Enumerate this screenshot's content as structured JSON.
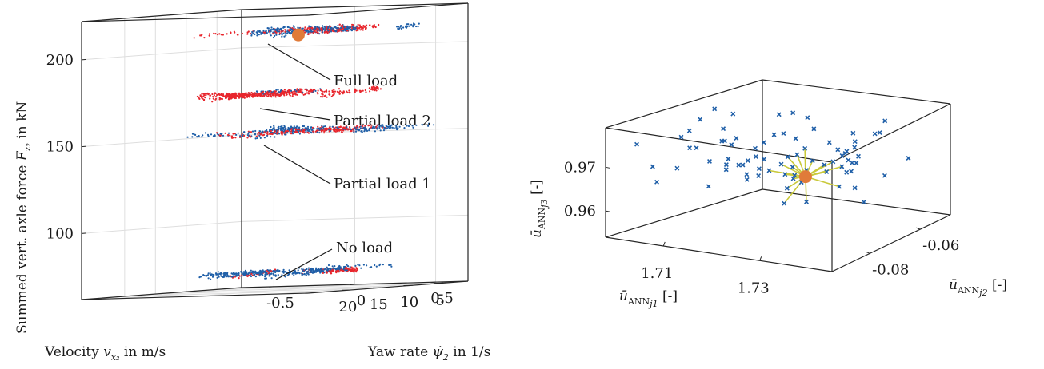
{
  "chart_data": [
    {
      "type": "scatter3d",
      "xlabel": "Velocity v_x2 in m/s",
      "ylabel": "Yaw rate ψ̇2 in 1/s",
      "zlabel": "Summed vert. axle force F_z2 in kN",
      "xlabel_parts": {
        "pre": "Velocity ",
        "var": "v",
        "sub": "x₂",
        "post": " in m/s"
      },
      "ylabel_parts": {
        "pre": "Yaw rate ",
        "var": "ψ̇",
        "sub": "2",
        "post": " in 1/s"
      },
      "zlabel_parts": {
        "pre": "Summed vert. axle force ",
        "var": "F",
        "sub": "z₂",
        "post": " in kN"
      },
      "x_ticks": [
        "5",
        "10",
        "15",
        "20"
      ],
      "y_ticks": [
        "-0.5",
        "0",
        "0.5"
      ],
      "z_ticks": [
        "100",
        "150",
        "200"
      ],
      "xlim": [
        1,
        27
      ],
      "ylim": [
        -0.7,
        0.7
      ],
      "zlim": [
        62,
        222
      ],
      "grid": true,
      "colors": {
        "training": "#1f5fa8",
        "neighbors": "#e8262d",
        "query": "#e07b39"
      },
      "clusters": [
        {
          "name": "Full load",
          "z": 211,
          "x_range": [
            1,
            25
          ],
          "y_range": [
            -0.3,
            0.5
          ]
        },
        {
          "name": "Partial load 2",
          "z": 175,
          "x_range": [
            4,
            20
          ],
          "y_range": [
            -0.25,
            0.35
          ]
        },
        {
          "name": "Partial load 1",
          "z": 153,
          "x_range": [
            1,
            25
          ],
          "y_range": [
            -0.35,
            0.5
          ]
        },
        {
          "name": "No load",
          "z": 72,
          "x_range": [
            1,
            25
          ],
          "y_range": [
            -0.4,
            0.45
          ]
        }
      ],
      "annotations": [
        "Full load",
        "Partial load 2",
        "Partial load 1",
        "No load"
      ],
      "query_point": {
        "x": 22,
        "y": 0.45,
        "z": 210
      }
    },
    {
      "type": "scatter3d",
      "xlabel": "ū_ANN,j1 [-]",
      "ylabel": "ū_ANN,j2 [-]",
      "zlabel": "ū_ANN,j3 [-]",
      "xlabel_parts": {
        "var": "ū",
        "sub": "ANN",
        "subsub": "j1",
        "post": " [-]"
      },
      "ylabel_parts": {
        "var": "ū",
        "sub": "ANN",
        "subsub": "j2",
        "post": " [-]"
      },
      "zlabel_parts": {
        "var": "ū",
        "sub": "ANN",
        "subsub": "j3",
        "post": " [-]"
      },
      "x_ticks": [
        "1.71",
        "1.73"
      ],
      "y_ticks": [
        "-0.08",
        "-0.06"
      ],
      "z_ticks": [
        "0.96",
        "0.97"
      ],
      "xlim": [
        1.698,
        1.745
      ],
      "ylim": [
        -0.095,
        -0.048
      ],
      "zlim": [
        0.954,
        0.979
      ],
      "grid": false,
      "colors": {
        "samples": "#1f5fa8",
        "links": "#c9c93a",
        "query": "#e07b39"
      },
      "query_point": {
        "x": 1.728,
        "y": -0.073,
        "z": 0.9668
      },
      "links_count": 20
    }
  ]
}
